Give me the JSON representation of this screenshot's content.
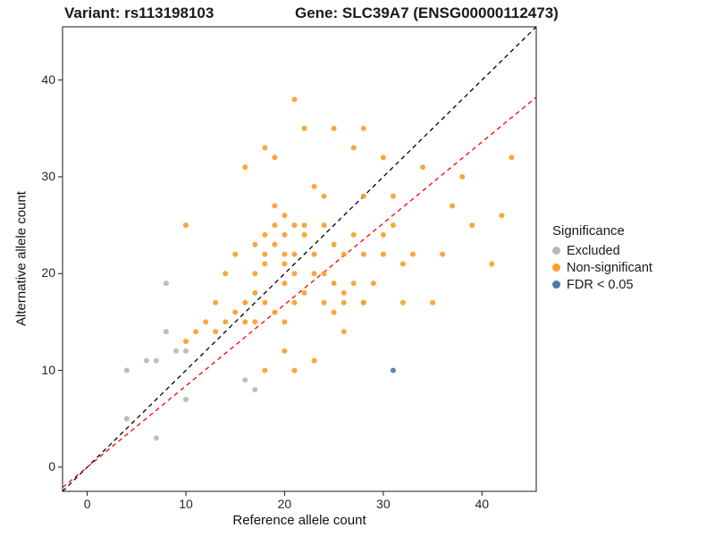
{
  "titles": {
    "variant": "Variant: rs113198103",
    "gene": "Gene: SLC39A7 (ENSG00000112473)"
  },
  "axes": {
    "x_label": "Reference allele count",
    "y_label": "Alternative allele count",
    "x_ticks": [
      0,
      10,
      20,
      30,
      40
    ],
    "y_ticks": [
      0,
      10,
      20,
      30,
      40
    ]
  },
  "legend": {
    "title": "Significance",
    "items": [
      {
        "label": "Excluded",
        "color": "#B8B8B8"
      },
      {
        "label": "Non-significant",
        "color": "#F9A02B"
      },
      {
        "label": "FDR < 0.05",
        "color": "#4E79A7"
      }
    ]
  },
  "chart_data": {
    "type": "scatter",
    "title": "Variant rs113198103 / Gene SLC39A7 (ENSG00000112473)",
    "xlabel": "Reference allele count",
    "ylabel": "Alternative allele count",
    "xlim": [
      -2.5,
      45.5
    ],
    "ylim": [
      -2.5,
      45.5
    ],
    "grid": false,
    "legend_position": "right",
    "lines": [
      {
        "name": "identity",
        "color": "#000000",
        "slope": 1.0,
        "intercept": 0,
        "style": "dashed"
      },
      {
        "name": "fitted-proportion",
        "color": "#FF0000",
        "slope": 0.84,
        "intercept": 0,
        "style": "dashed"
      }
    ],
    "series": [
      {
        "name": "Excluded",
        "color": "#B8B8B8",
        "points": [
          [
            4,
            10
          ],
          [
            4,
            5
          ],
          [
            6,
            11
          ],
          [
            7,
            11
          ],
          [
            7,
            3
          ],
          [
            8,
            19
          ],
          [
            8,
            14
          ],
          [
            9,
            12
          ],
          [
            10,
            12
          ],
          [
            10,
            7
          ],
          [
            16,
            9
          ],
          [
            17,
            8
          ]
        ]
      },
      {
        "name": "Non-significant",
        "color": "#F9A02B",
        "points": [
          [
            10,
            25
          ],
          [
            10,
            13
          ],
          [
            11,
            14
          ],
          [
            12,
            15
          ],
          [
            13,
            17
          ],
          [
            13,
            14
          ],
          [
            14,
            20
          ],
          [
            14,
            15
          ],
          [
            15,
            22
          ],
          [
            15,
            16
          ],
          [
            16,
            31
          ],
          [
            16,
            17
          ],
          [
            16,
            15
          ],
          [
            17,
            23
          ],
          [
            17,
            20
          ],
          [
            17,
            18
          ],
          [
            17,
            15
          ],
          [
            18,
            33
          ],
          [
            18,
            24
          ],
          [
            18,
            22
          ],
          [
            18,
            21
          ],
          [
            18,
            17
          ],
          [
            18,
            10
          ],
          [
            19,
            32
          ],
          [
            19,
            27
          ],
          [
            19,
            25
          ],
          [
            19,
            23
          ],
          [
            19,
            16
          ],
          [
            20,
            26
          ],
          [
            20,
            24
          ],
          [
            20,
            22
          ],
          [
            20,
            21
          ],
          [
            20,
            19
          ],
          [
            20,
            15
          ],
          [
            20,
            12
          ],
          [
            21,
            38
          ],
          [
            21,
            25
          ],
          [
            21,
            22
          ],
          [
            21,
            20
          ],
          [
            21,
            17
          ],
          [
            21,
            10
          ],
          [
            22,
            35
          ],
          [
            22,
            25
          ],
          [
            22,
            24
          ],
          [
            22,
            18
          ],
          [
            23,
            29
          ],
          [
            23,
            22
          ],
          [
            23,
            20
          ],
          [
            23,
            11
          ],
          [
            24,
            28
          ],
          [
            24,
            25
          ],
          [
            24,
            20
          ],
          [
            24,
            17
          ],
          [
            25,
            35
          ],
          [
            25,
            23
          ],
          [
            25,
            19
          ],
          [
            25,
            16
          ],
          [
            26,
            22
          ],
          [
            26,
            18
          ],
          [
            26,
            17
          ],
          [
            26,
            14
          ],
          [
            27,
            33
          ],
          [
            27,
            24
          ],
          [
            27,
            19
          ],
          [
            28,
            35
          ],
          [
            28,
            28
          ],
          [
            28,
            22
          ],
          [
            28,
            17
          ],
          [
            28,
            17
          ],
          [
            29,
            19
          ],
          [
            30,
            32
          ],
          [
            30,
            24
          ],
          [
            30,
            22
          ],
          [
            31,
            28
          ],
          [
            31,
            25
          ],
          [
            32,
            21
          ],
          [
            32,
            17
          ],
          [
            33,
            22
          ],
          [
            34,
            31
          ],
          [
            35,
            17
          ],
          [
            36,
            22
          ],
          [
            37,
            27
          ],
          [
            38,
            30
          ],
          [
            39,
            25
          ],
          [
            41,
            21
          ],
          [
            42,
            26
          ],
          [
            43,
            32
          ]
        ]
      },
      {
        "name": "FDR < 0.05",
        "color": "#4E79A7",
        "points": [
          [
            31,
            10
          ]
        ]
      }
    ]
  },
  "panel": {
    "border_color": "#1a1a1a",
    "background": "#ffffff"
  }
}
